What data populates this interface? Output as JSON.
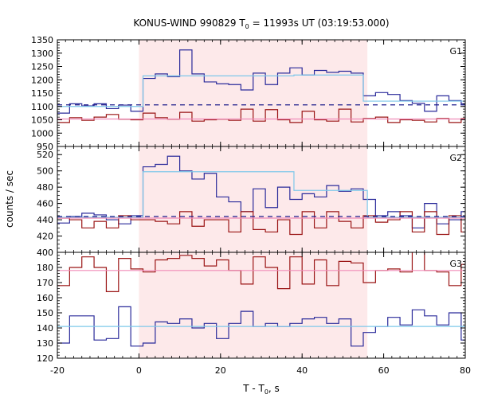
{
  "chart_data": {
    "type": "line",
    "title": "KONUS-WIND 990829 T",
    "title_sub": "0",
    "title_rest": " = 11993s UT (03:19:53.000)",
    "xlabel": "T - T",
    "xlabel_sub": "0",
    "xlabel_rest": ", s",
    "ylabel": "counts / sec",
    "xlim": [
      -20,
      80
    ],
    "x_ticks": [
      "-20",
      "0",
      "20",
      "40",
      "60",
      "80"
    ],
    "x_tick_values": [
      -20,
      0,
      20,
      40,
      60,
      80
    ],
    "shaded_interval": [
      0,
      56
    ],
    "colors": {
      "shade": "#fde9ea",
      "blue": "#2a2a9a",
      "red": "#9a1414",
      "cyan": "#7ec8ea",
      "pink": "#f08cb8",
      "dashed": "#1a1a8a"
    },
    "panels": [
      {
        "label": "G1",
        "ylim": [
          950,
          1350
        ],
        "y_ticks": [
          "950",
          "1000",
          "1050",
          "1100",
          "1150",
          "1200",
          "1250",
          "1300",
          "1350"
        ],
        "y_tick_values": [
          950,
          1000,
          1050,
          1100,
          1150,
          1200,
          1250,
          1300,
          1350
        ],
        "minor_step": 10,
        "series": [
          {
            "color": "blue",
            "x": [
              -20,
              -17,
              -14,
              -11,
              -8,
              -5,
              -2,
              1,
              4,
              7,
              10,
              13,
              16,
              19,
              22,
              25,
              28,
              31,
              34,
              37,
              40,
              43,
              46,
              49,
              52,
              55,
              58,
              61,
              64,
              67,
              70,
              73,
              76,
              79
            ],
            "y": [
              1075,
              1110,
              1102,
              1110,
              1092,
              1105,
              1082,
              1205,
              1222,
              1212,
              1312,
              1222,
              1192,
              1185,
              1182,
              1162,
              1225,
              1182,
              1225,
              1245,
              1218,
              1235,
              1228,
              1232,
              1225,
              1140,
              1152,
              1145,
              1122,
              1112,
              1082,
              1140,
              1122,
              1110
            ]
          },
          {
            "color": "red",
            "x": [
              -20,
              -17,
              -14,
              -11,
              -8,
              -5,
              -2,
              1,
              4,
              7,
              10,
              13,
              16,
              19,
              22,
              25,
              28,
              31,
              34,
              37,
              40,
              43,
              46,
              49,
              52,
              55,
              58,
              61,
              64,
              67,
              70,
              73,
              76,
              79
            ],
            "y": [
              1040,
              1058,
              1048,
              1060,
              1070,
              1052,
              1050,
              1075,
              1058,
              1052,
              1078,
              1045,
              1050,
              1052,
              1048,
              1090,
              1045,
              1088,
              1050,
              1040,
              1082,
              1050,
              1045,
              1090,
              1042,
              1055,
              1060,
              1040,
              1050,
              1048,
              1042,
              1055,
              1040,
              1055
            ]
          },
          {
            "color": "cyan",
            "x": [
              -20,
              -2,
              1,
              18,
              38,
              52,
              55,
              80
            ],
            "y": [
              1100,
              1100,
              1215,
              1215,
              1218,
              1218,
              1120,
              1120
            ]
          },
          {
            "color": "pink",
            "x": [
              -20,
              80
            ],
            "y": [
              1053,
              1053
            ]
          },
          {
            "color": "dashed",
            "dashed": true,
            "x": [
              -20,
              80
            ],
            "y": [
              1106,
              1106
            ]
          }
        ]
      },
      {
        "label": "G2",
        "ylim": [
          400,
          530
        ],
        "y_ticks": [
          "400",
          "420",
          "440",
          "460",
          "480",
          "500",
          "520"
        ],
        "y_tick_values": [
          400,
          420,
          440,
          460,
          480,
          500,
          520
        ],
        "minor_step": 5,
        "series": [
          {
            "color": "blue",
            "x": [
              -20,
              -17,
              -14,
              -11,
              -8,
              -5,
              -2,
              1,
              4,
              7,
              10,
              13,
              16,
              19,
              22,
              25,
              28,
              31,
              34,
              37,
              40,
              43,
              46,
              49,
              52,
              55,
              58,
              61,
              64,
              67,
              70,
              73,
              76,
              79
            ],
            "y": [
              436,
              444,
              448,
              446,
              440,
              435,
              445,
              505,
              508,
              518,
              500,
              490,
              497,
              468,
              462,
              450,
              478,
              455,
              480,
              465,
              472,
              468,
              482,
              475,
              478,
              465,
              445,
              450,
              445,
              430,
              460,
              435,
              440,
              450
            ]
          },
          {
            "color": "red",
            "x": [
              -20,
              -17,
              -14,
              -11,
              -8,
              -5,
              -2,
              1,
              4,
              7,
              10,
              13,
              16,
              19,
              22,
              25,
              28,
              31,
              34,
              37,
              40,
              43,
              46,
              49,
              52,
              55,
              58,
              61,
              64,
              67,
              70,
              73,
              76,
              79
            ],
            "y": [
              442,
              440,
              430,
              438,
              430,
              445,
              440,
              440,
              438,
              435,
              450,
              432,
              440,
              440,
              425,
              450,
              428,
              425,
              440,
              422,
              450,
              430,
              450,
              438,
              430,
              445,
              437,
              440,
              450,
              425,
              450,
              422,
              445,
              425
            ]
          },
          {
            "color": "cyan",
            "x": [
              -20,
              -1,
              1,
              18,
              38,
              52,
              56,
              80
            ],
            "y": [
              443,
              443,
              499,
              499,
              476,
              476,
              443,
              443
            ]
          },
          {
            "color": "pink",
            "x": [
              -20,
              80
            ],
            "y": [
              442,
              442
            ]
          },
          {
            "color": "dashed",
            "dashed": true,
            "x": [
              -20,
              80
            ],
            "y": [
              444,
              444
            ]
          }
        ]
      },
      {
        "label": "G3",
        "ylim": [
          120,
          190
        ],
        "y_ticks": [
          "120",
          "130",
          "140",
          "150",
          "160",
          "170",
          "180"
        ],
        "y_tick_values": [
          120,
          130,
          140,
          150,
          160,
          170,
          180
        ],
        "minor_step": 2,
        "series": [
          {
            "color": "blue",
            "x": [
              -20,
              -17,
              -14,
              -11,
              -8,
              -5,
              -2,
              1,
              4,
              7,
              10,
              13,
              16,
              19,
              22,
              25,
              28,
              31,
              34,
              37,
              40,
              43,
              46,
              49,
              52,
              55,
              58,
              61,
              64,
              67,
              70,
              73,
              76,
              79
            ],
            "y": [
              130,
              148,
              148,
              132,
              133,
              154,
              128,
              130,
              144,
              143,
              146,
              140,
              143,
              133,
              143,
              151,
              141,
              143,
              141,
              143,
              146,
              147,
              143,
              146,
              128,
              137,
              141,
              147,
              142,
              152,
              148,
              142,
              150,
              132
            ]
          },
          {
            "color": "red",
            "x": [
              -20,
              -17,
              -14,
              -11,
              -8,
              -5,
              -2,
              1,
              4,
              7,
              10,
              13,
              16,
              19,
              22,
              25,
              28,
              31,
              34,
              37,
              40,
              43,
              46,
              49,
              52,
              55,
              58,
              61,
              64,
              67,
              70,
              73,
              76,
              79
            ],
            "y": [
              168,
              180,
              187,
              180,
              164,
              186,
              179,
              177,
              185,
              186,
              188,
              186,
              181,
              185,
              178,
              169,
              187,
              180,
              166,
              187,
              169,
              185,
              168,
              184,
              183,
              170,
              178,
              179,
              177,
              192,
              178,
              177,
              168,
              182
            ]
          },
          {
            "color": "cyan",
            "x": [
              -20,
              80
            ],
            "y": [
              141,
              141
            ]
          },
          {
            "color": "pink",
            "x": [
              -20,
              80
            ],
            "y": [
              178,
              178
            ]
          }
        ]
      }
    ]
  }
}
